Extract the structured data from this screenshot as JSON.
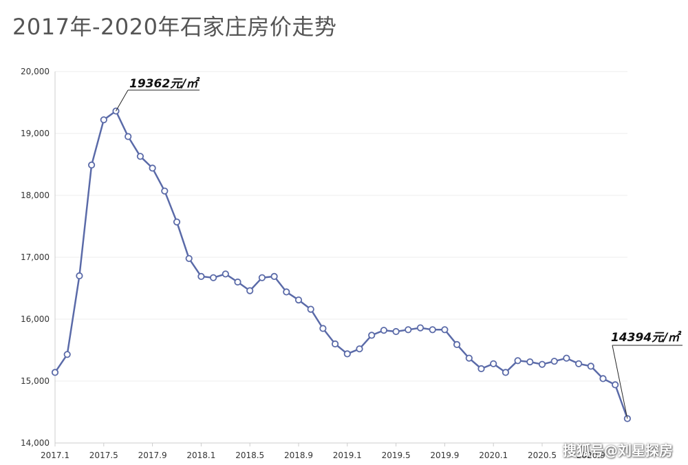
{
  "chart_data": {
    "type": "line",
    "title": "2017年-2020年石家庄房价走势",
    "xlabel": "",
    "ylabel": "",
    "ylim": [
      14000,
      20000
    ],
    "yticks": [
      14000,
      15000,
      16000,
      17000,
      18000,
      19000,
      20000
    ],
    "ytick_labels": [
      "14,000",
      "15,000",
      "16,000",
      "17,000",
      "18,000",
      "19,000",
      "20,000"
    ],
    "xtick_labels": [
      "2017.1",
      "2017.5",
      "2017.9",
      "2018.1",
      "2018.5",
      "2018.9",
      "2019.1",
      "2019.5",
      "2019.9",
      "2020.1",
      "2020.5",
      "2020.9"
    ],
    "grid": true,
    "series": [
      {
        "color": "#5a6aa8",
        "values": [
          15140,
          15430,
          16700,
          18490,
          19220,
          19362,
          18950,
          18630,
          18440,
          18070,
          17570,
          16980,
          16690,
          16670,
          16730,
          16600,
          16460,
          16670,
          16690,
          16440,
          16310,
          16160,
          15850,
          15600,
          15440,
          15520,
          15740,
          15820,
          15800,
          15830,
          15860,
          15830,
          15830,
          15590,
          15370,
          15200,
          15280,
          15140,
          15330,
          15310,
          15270,
          15320,
          15370,
          15280,
          15240,
          15040,
          14940,
          14394
        ]
      }
    ],
    "annotations": [
      {
        "text": "19362元/㎡",
        "index": 5
      },
      {
        "text": "14394元/㎡",
        "index": 47
      }
    ]
  },
  "watermark": "搜狐号@刘星探房"
}
